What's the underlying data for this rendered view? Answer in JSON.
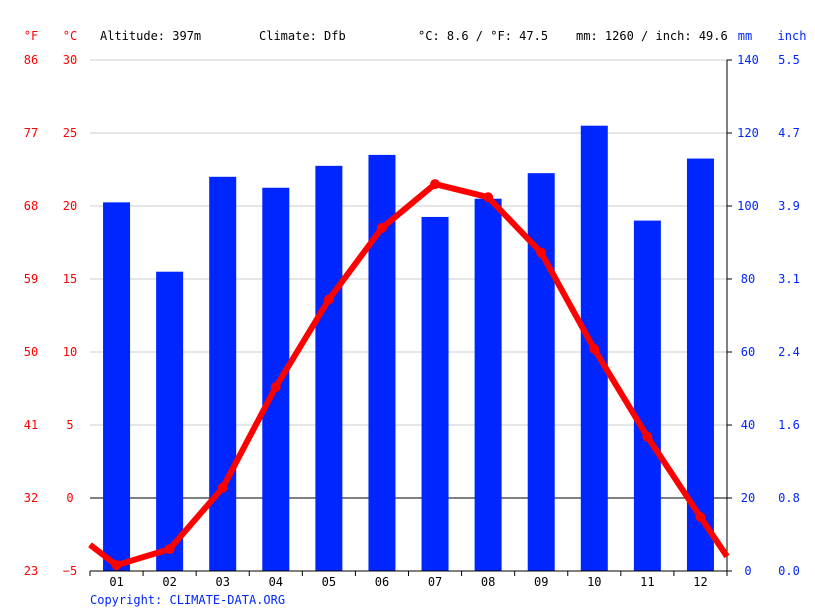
{
  "chart_data": {
    "type": "bar",
    "header": {
      "unit_f": "°F",
      "unit_c": "°C",
      "altitude": "Altitude: 397m",
      "climate": "Climate: Dfb",
      "temp_summary": "°C: 8.6 / °F: 47.5",
      "precip_summary": "mm: 1260 / inch: 49.6",
      "unit_mm": "mm",
      "unit_inch": "inch"
    },
    "categories": [
      "01",
      "02",
      "03",
      "04",
      "05",
      "06",
      "07",
      "08",
      "09",
      "10",
      "11",
      "12"
    ],
    "series": [
      {
        "type": "bar",
        "axis": "precipitation",
        "color": "#0026ff",
        "values": [
          101,
          82,
          108,
          105,
          111,
          114,
          97,
          102,
          109,
          122,
          96,
          113
        ]
      },
      {
        "type": "line",
        "axis": "temperature",
        "color": "#ff0000",
        "values": [
          -4.6,
          -3.5,
          0.7,
          7.6,
          13.6,
          18.5,
          21.5,
          20.6,
          16.8,
          10.2,
          4.2,
          -1.3
        ]
      }
    ],
    "line_extension": {
      "start": -3.2,
      "end": -4.0
    },
    "axes": {
      "temp_c": {
        "min": -5,
        "max": 30,
        "ticks": [
          "30",
          "25",
          "20",
          "15",
          "10",
          "5",
          "0",
          "−5"
        ]
      },
      "temp_f": {
        "ticks": [
          "86",
          "77",
          "68",
          "59",
          "50",
          "41",
          "32",
          "23"
        ]
      },
      "precip_mm": {
        "min": 0,
        "max": 140,
        "ticks": [
          "140",
          "120",
          "100",
          "80",
          "60",
          "40",
          "20",
          "0"
        ]
      },
      "precip_inch": {
        "ticks": [
          "5.5",
          "4.7",
          "3.9",
          "3.1",
          "2.4",
          "1.6",
          "0.8",
          "0.0"
        ]
      }
    },
    "grid": true,
    "colors": {
      "temperature": "#ff0000",
      "temp_axis": "#ff0000",
      "precipitation": "#0026ff",
      "precip_axis": "#0026ff",
      "grid": "#cccccc",
      "zero_line": "#000000",
      "axis": "#000000"
    },
    "copyright": "Copyright: CLIMATE-DATA.ORG"
  }
}
